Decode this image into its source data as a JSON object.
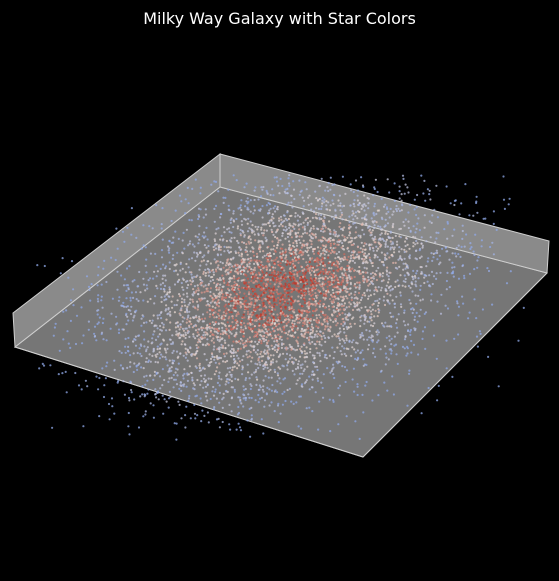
{
  "chart_data": {
    "type": "scatter",
    "projection": "3d",
    "title": "Milky Way Galaxy with Star Colors",
    "xlabel": "",
    "ylabel": "",
    "zlabel": "",
    "grid": false,
    "axes_visible": false,
    "colormap": "coolwarm",
    "distribution": "2d gaussian disk, densest at center",
    "point_count_approx": 5000,
    "color_rule": "warm red toward the dense center, pale white in the middle ring, cool blue toward the sparse outskirts",
    "colors": {
      "background": "#000000",
      "pane_floor": "#767676",
      "pane_wall": "#8a8a8a",
      "pane_edge": "#d8d8d8",
      "warm": "#c0392b",
      "neutral": "#e8d8d0",
      "cool": "#8fa8e8"
    }
  }
}
